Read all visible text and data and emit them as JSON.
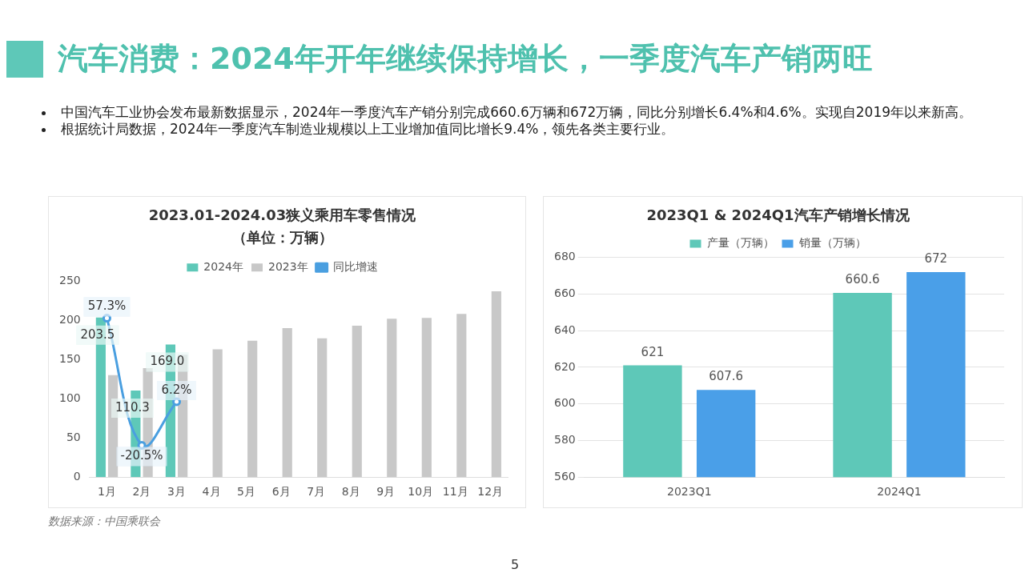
{
  "chart_data": [
    {
      "type": "other",
      "title": "汽车消费：2024年开年继续保持增长，一季度汽车产销两旺",
      "annotations": [
        "中国汽车工业协会发布最新数据显示，2024年一季度汽车产销分别完成660.6万辆和672万辆，同比分别增长6.4%和4.6%。实现自2019年以来新高。",
        "根据统计局数据，2024年一季度汽车制造业规模以上工业增加值同比增长9.4%，领先各类主要行业。",
        "5"
      ]
    },
    {
      "type": "bar",
      "title": "2023.01-2024.03狭义乘用车零售情况",
      "subtitle": "（单位：万辆）",
      "categories": [
        "1月",
        "2月",
        "3月",
        "4月",
        "5月",
        "6月",
        "7月",
        "8月",
        "9月",
        "10月",
        "11月",
        "12月"
      ],
      "series": [
        {
          "name": "2024年",
          "color": "#5ec8b8",
          "values": [
            203.5,
            110.3,
            169.0,
            null,
            null,
            null,
            null,
            null,
            null,
            null,
            null,
            null
          ],
          "value_labels": [
            "203.5",
            "110.3",
            "169.0",
            null,
            null,
            null,
            null,
            null,
            null,
            null,
            null,
            null
          ]
        },
        {
          "name": "2023年",
          "color": "#c8c8c8",
          "values": [
            130,
            139,
            156,
            163,
            174,
            190,
            177,
            193,
            202,
            203,
            208,
            237
          ]
        },
        {
          "name": "同比增速",
          "type": "line",
          "axis": "y2",
          "color": "#4a9fe0",
          "marker": "circle",
          "values": [
            57.3,
            -20.5,
            6.2,
            null,
            null,
            null,
            null,
            null,
            null,
            null,
            null,
            null
          ],
          "value_labels": [
            "57.3%",
            "-20.5%",
            "6.2%",
            null,
            null,
            null,
            null,
            null,
            null,
            null,
            null,
            null
          ]
        }
      ],
      "ylim": [
        0,
        250
      ],
      "yticks": [
        0,
        50,
        100,
        150,
        200,
        250
      ],
      "grid": false,
      "legend": "top",
      "annotations": [
        "数据来源：中国乘联会"
      ]
    },
    {
      "type": "bar",
      "title": "2023Q1 & 2024Q1汽车产销增长情况",
      "categories": [
        "2023Q1",
        "2024Q1"
      ],
      "series": [
        {
          "name": "产量（万辆）",
          "color": "#5ec8b8",
          "values": [
            621,
            660.6
          ]
        },
        {
          "name": "销量（万辆）",
          "color": "#4a9fe8",
          "values": [
            607.6,
            672
          ]
        }
      ],
      "ylim": [
        560,
        680
      ],
      "yticks": [
        560,
        580,
        600,
        620,
        640,
        660,
        680
      ],
      "grid": "y",
      "legend": "top",
      "data_labels": true
    }
  ]
}
